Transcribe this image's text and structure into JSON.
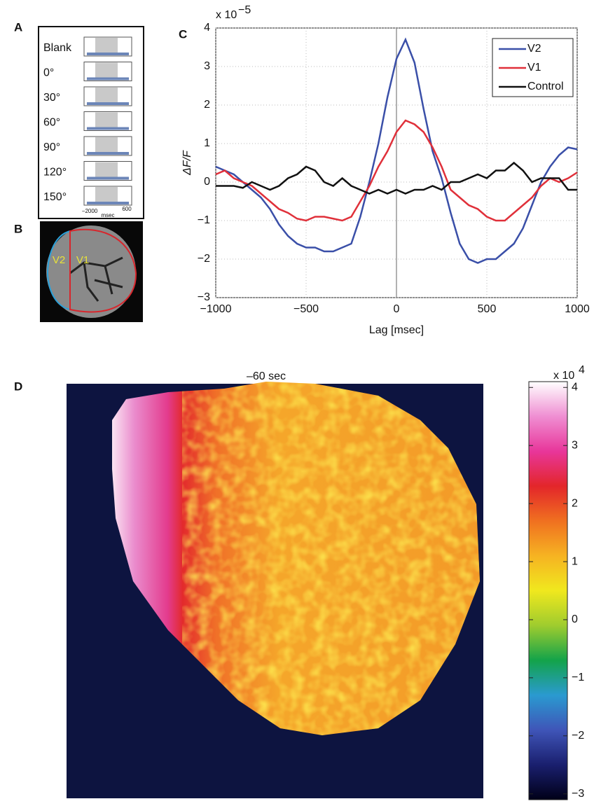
{
  "panel_labels": [
    "A",
    "B",
    "C",
    "D"
  ],
  "panel_a": {
    "rows": [
      "Blank",
      "0°",
      "30°",
      "60°",
      "90°",
      "120°",
      "150°"
    ],
    "x_axis_labels": [
      "−2000",
      "600"
    ],
    "x_axis_unit": "msec"
  },
  "panel_b": {
    "regions": [
      "V2",
      "V1"
    ]
  },
  "chart_data": [
    {
      "type": "line",
      "x_label": "Lag [msec]",
      "y_label": "ΔF/F",
      "y_exponent_base": "x 10",
      "y_exponent_power": "−5",
      "x": [
        -1000,
        -950,
        -900,
        -850,
        -800,
        -750,
        -700,
        -650,
        -600,
        -550,
        -500,
        -450,
        -400,
        -350,
        -300,
        -250,
        -200,
        -150,
        -100,
        -50,
        0,
        50,
        100,
        150,
        200,
        250,
        300,
        350,
        400,
        450,
        500,
        550,
        600,
        650,
        700,
        750,
        800,
        850,
        900,
        950,
        1000
      ],
      "series": [
        {
          "name": "V2",
          "color": "#3a4fa8",
          "values": [
            0.4,
            0.3,
            0.2,
            0.0,
            -0.2,
            -0.4,
            -0.7,
            -1.1,
            -1.4,
            -1.6,
            -1.7,
            -1.7,
            -1.8,
            -1.8,
            -1.7,
            -1.6,
            -0.9,
            0.0,
            1.0,
            2.2,
            3.2,
            3.7,
            3.1,
            1.9,
            0.8,
            0.1,
            -0.8,
            -1.6,
            -2.0,
            -2.1,
            -2.0,
            -2.0,
            -1.8,
            -1.6,
            -1.2,
            -0.6,
            0.0,
            0.4,
            0.7,
            0.9,
            0.85
          ]
        },
        {
          "name": "V1",
          "color": "#e0303a",
          "values": [
            0.2,
            0.3,
            0.1,
            0.0,
            -0.1,
            -0.3,
            -0.5,
            -0.7,
            -0.8,
            -0.95,
            -1.0,
            -0.9,
            -0.9,
            -0.95,
            -1.0,
            -0.9,
            -0.5,
            -0.1,
            0.4,
            0.8,
            1.3,
            1.6,
            1.5,
            1.3,
            0.9,
            0.4,
            -0.2,
            -0.4,
            -0.6,
            -0.7,
            -0.9,
            -1.0,
            -1.0,
            -0.8,
            -0.6,
            -0.4,
            -0.1,
            0.1,
            0.0,
            0.1,
            0.25
          ]
        },
        {
          "name": "Control",
          "color": "#111111",
          "values": [
            -0.1,
            -0.1,
            -0.1,
            -0.15,
            0.0,
            -0.1,
            -0.2,
            -0.1,
            0.1,
            0.2,
            0.4,
            0.3,
            0.0,
            -0.1,
            0.1,
            -0.1,
            -0.2,
            -0.3,
            -0.2,
            -0.3,
            -0.2,
            -0.3,
            -0.2,
            -0.2,
            -0.1,
            -0.2,
            0.0,
            0.0,
            0.1,
            0.2,
            0.1,
            0.3,
            0.3,
            0.5,
            0.3,
            0.0,
            0.1,
            0.1,
            0.1,
            -0.2,
            -0.2
          ]
        }
      ],
      "xlim": [
        -1000,
        1000
      ],
      "ylim": [
        -3,
        4
      ],
      "xticks": [
        {
          "value": -1000,
          "label": "−1000"
        },
        {
          "value": -500,
          "label": "−500"
        },
        0,
        500,
        1000
      ],
      "yticks": [
        {
          "value": -3,
          "label": "−3"
        },
        {
          "value": -2,
          "label": "−2"
        },
        {
          "value": -1,
          "label": "−1"
        },
        0,
        1,
        2,
        3,
        4
      ],
      "grid": true,
      "reference_line_x": 0,
      "legend": "upper-right"
    },
    {
      "type": "heatmap",
      "title": "–60 sec",
      "background": "#0d1440",
      "colorbar_exponent_base": "x 10",
      "colorbar_exponent_power": "4",
      "clim": [
        -3.1,
        4.1
      ],
      "colorbar_ticks": [
        {
          "value": -3,
          "label": "−3"
        },
        {
          "value": -2,
          "label": "−2"
        },
        {
          "value": -1,
          "label": "−1"
        },
        0,
        1,
        2,
        3,
        4
      ],
      "colormap": [
        "#000018",
        "#1a1f6e",
        "#3f55b8",
        "#2a9ad0",
        "#13a34a",
        "#9fcc2e",
        "#f0e81e",
        "#f6b322",
        "#f07020",
        "#e3262a",
        "#e8369a",
        "#ef8ed2",
        "#ffffff"
      ]
    }
  ]
}
